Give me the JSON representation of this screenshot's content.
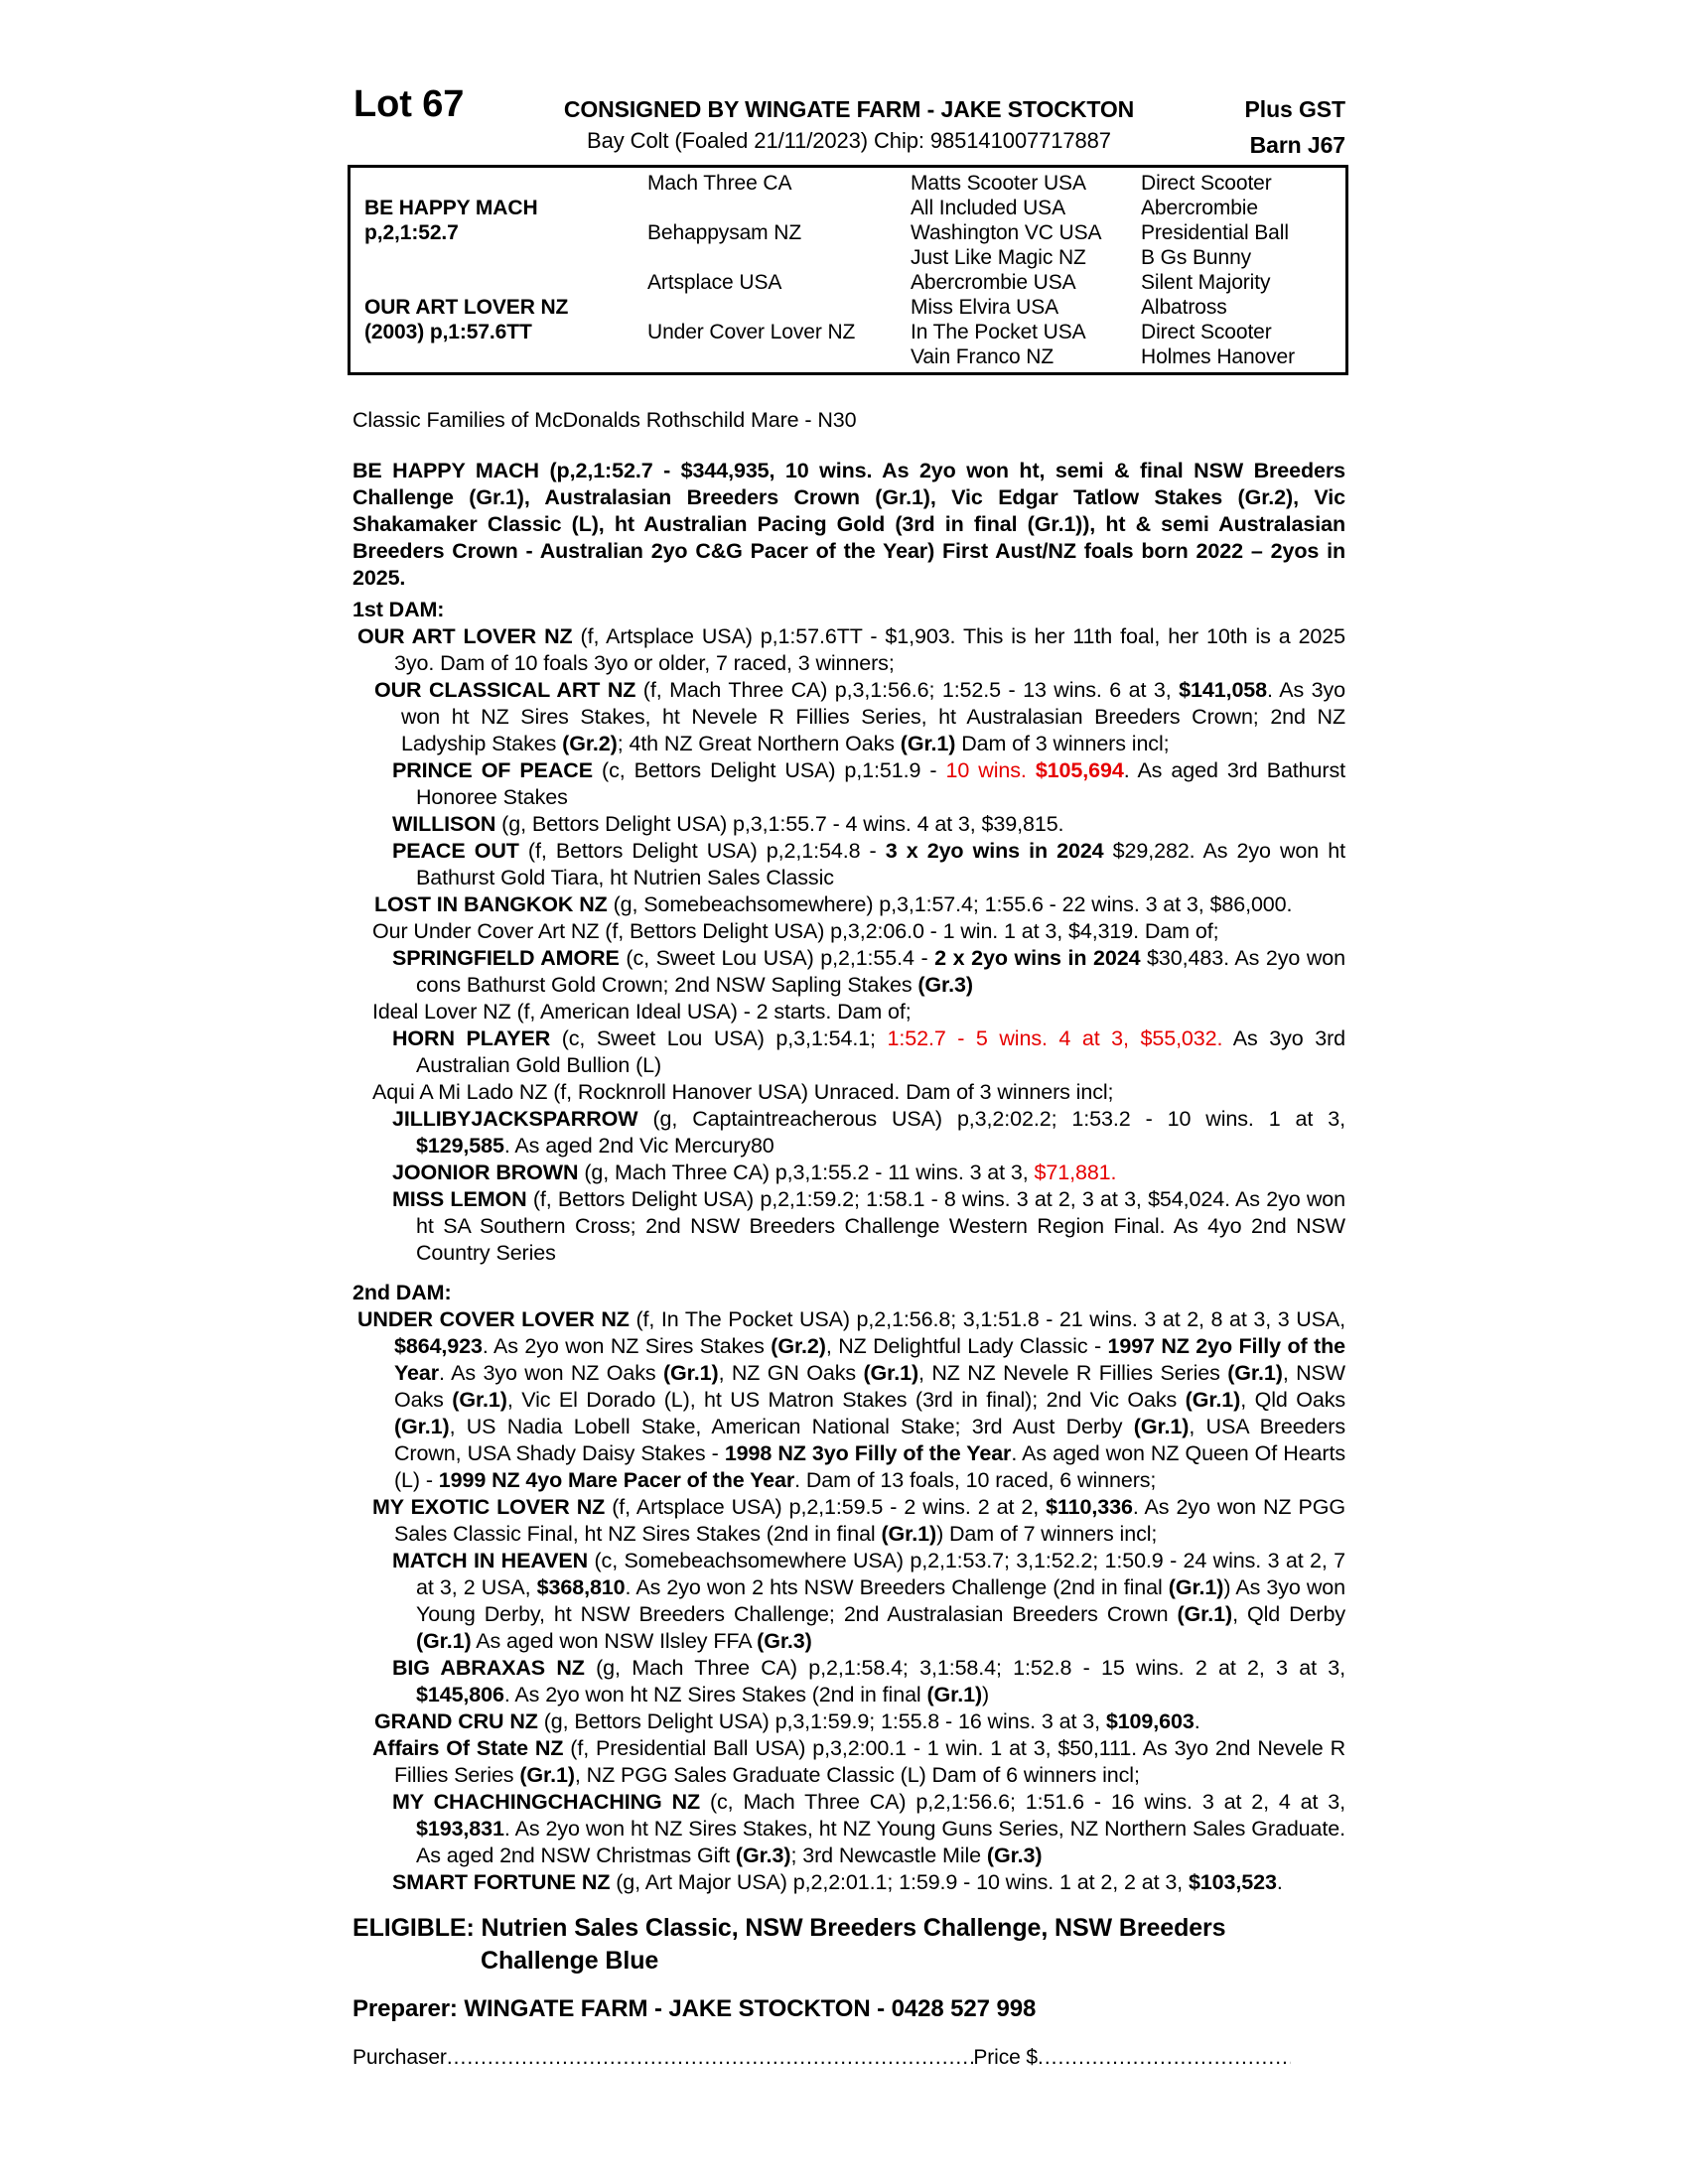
{
  "page": {
    "background": "#ffffff",
    "red": "#e60000"
  },
  "header": {
    "lot": "Lot 67",
    "consigned": "CONSIGNED BY WINGATE FARM - JAKE STOCKTON",
    "plus_gst": "Plus GST",
    "subtitle": "Bay Colt (Foaled 21/11/2023) Chip: 985141007717887",
    "barn": "Barn J67"
  },
  "pedigree_table": {
    "rows": [
      [
        "",
        "Mach Three CA",
        "Matts Scooter USA",
        "Direct Scooter"
      ],
      [
        "BE HAPPY MACH",
        "",
        "All Included USA",
        "Abercrombie"
      ],
      [
        "p,2,1:52.7",
        "Behappysam NZ",
        "Washington VC USA",
        "Presidential Ball"
      ],
      [
        "",
        "",
        "Just Like Magic NZ",
        "B Gs Bunny"
      ],
      [
        "",
        "Artsplace USA",
        "Abercrombie USA",
        "Silent Majority"
      ],
      [
        "OUR ART LOVER NZ",
        "",
        "Miss Elvira USA",
        "Albatross"
      ],
      [
        "(2003) p,1:57.6TT",
        "Under Cover Lover NZ",
        "In The Pocket USA",
        "Direct Scooter"
      ],
      [
        "",
        "",
        "Vain Franco NZ",
        "Holmes Hanover"
      ]
    ]
  },
  "classic_families": "Classic Families of McDonalds Rothschild Mare - N30",
  "sire_paragraph": {
    "segments": [
      {
        "t": "BE HAPPY MACH (p,2,1:52.7 - $344,935, 10 wins. As 2yo won ht, semi & final NSW Breeders Challenge (Gr.1), Australasian Breeders Crown (Gr.1), Vic Edgar Tatlow Stakes (Gr.2), Vic Shakamaker Classic (L), ht Australian Pacing Gold (3rd in final (Gr.1)), ht & semi Australasian Breeders Crown - Australian 2yo C&G Pacer of the Year) First Aust/NZ foals born 2022 – 2yos in 2025.",
        "b": true
      }
    ]
  },
  "sections": [
    {
      "heading": "1st DAM:",
      "paragraphs": [
        {
          "style": "dam",
          "segments": [
            {
              "t": "OUR ART LOVER NZ ",
              "b": true
            },
            {
              "t": "(f, Artsplace USA) p,1:57.6TT - $1,903. This is her 11th foal, her 10th is a 2025 3yo. Dam of 10 foals 3yo or older, 7 raced, 3 winners;"
            }
          ]
        },
        {
          "style": "sub1",
          "segments": [
            {
              "t": "OUR CLASSICAL ART NZ ",
              "b": true
            },
            {
              "t": "(f, Mach Three CA) p,3,1:56.6; 1:52.5 - 13 wins. 6 at 3, "
            },
            {
              "t": "$141,058",
              "b": true
            },
            {
              "t": ". As 3yo won ht NZ Sires Stakes, ht Nevele R Fillies Series, ht Australasian Breeders Crown; 2nd NZ Ladyship Stakes "
            },
            {
              "t": "(Gr.2)",
              "b": true
            },
            {
              "t": "; 4th NZ Great Northern Oaks "
            },
            {
              "t": "(Gr.1)",
              "b": true
            },
            {
              "t": "  Dam of 3 winners incl;"
            }
          ]
        },
        {
          "style": "sub2",
          "segments": [
            {
              "t": "PRINCE OF PEACE ",
              "b": true
            },
            {
              "t": "(c, Bettors Delight USA) p,1:51.9 - "
            },
            {
              "t": "10 wins. ",
              "r": true
            },
            {
              "t": "$105,694",
              "b": true,
              "r": true
            },
            {
              "t": ". As aged 3rd Bathurst Honoree Stakes"
            }
          ]
        },
        {
          "style": "sub2",
          "segments": [
            {
              "t": "WILLISON ",
              "b": true
            },
            {
              "t": "(g, Bettors Delight USA) p,3,1:55.7 - 4 wins. 4 at 3, $39,815."
            }
          ]
        },
        {
          "style": "sub2",
          "segments": [
            {
              "t": "PEACE OUT ",
              "b": true
            },
            {
              "t": "(f, Bettors Delight USA) p,2,1:54.8 - "
            },
            {
              "t": "3 x 2yo wins in 2024",
              "b": true
            },
            {
              "t": "  $29,282. As 2yo won ht Bathurst Gold Tiara, ht Nutrien Sales Classic"
            }
          ]
        },
        {
          "style": "sub1",
          "segments": [
            {
              "t": "LOST IN BANGKOK NZ ",
              "b": true
            },
            {
              "t": "(g, Somebeachsomewhere) p,3,1:57.4; 1:55.6 - 22 wins. 3 at 3, $86,000."
            }
          ]
        },
        {
          "style": "sub1b",
          "segments": [
            {
              "t": "Our Under Cover Art NZ (f, Bettors Delight USA) p,3,2:06.0 - 1 win. 1 at 3, $4,319. Dam of;"
            }
          ]
        },
        {
          "style": "sub2",
          "segments": [
            {
              "t": "SPRINGFIELD AMORE ",
              "b": true
            },
            {
              "t": "(c, Sweet Lou USA) p,2,1:55.4 - "
            },
            {
              "t": "2 x 2yo wins in 2024",
              "b": true
            },
            {
              "t": " $30,483. As 2yo won cons Bathurst Gold Crown; 2nd NSW Sapling Stakes "
            },
            {
              "t": "(Gr.3)",
              "b": true
            }
          ]
        },
        {
          "style": "sub1b",
          "segments": [
            {
              "t": "Ideal Lover NZ (f, American Ideal USA) - 2 starts. Dam of;"
            }
          ]
        },
        {
          "style": "sub2",
          "segments": [
            {
              "t": "HORN PLAYER ",
              "b": true
            },
            {
              "t": "(c, Sweet Lou USA) p,3,1:54.1; "
            },
            {
              "t": "1:52.7 - 5 wins. 4 at 3, $55,032.",
              "r": true
            },
            {
              "t": " As 3yo 3rd Australian Gold Bullion (L)"
            }
          ]
        },
        {
          "style": "sub1b",
          "segments": [
            {
              "t": "Aqui A Mi Lado NZ (f, Rocknroll Hanover USA) Unraced. Dam of 3 winners incl;"
            }
          ]
        },
        {
          "style": "sub2",
          "segments": [
            {
              "t": "JILLIBYJACKSPARROW ",
              "b": true
            },
            {
              "t": "(g, Captaintreacherous USA) p,3,2:02.2; 1:53.2 - 10 wins. 1 at 3, "
            },
            {
              "t": "$129,585",
              "b": true
            },
            {
              "t": ". As aged 2nd Vic Mercury80"
            }
          ]
        },
        {
          "style": "sub2",
          "segments": [
            {
              "t": "JOONIOR BROWN ",
              "b": true
            },
            {
              "t": "(g, Mach Three CA) p,3,1:55.2 - 11 wins. 3 at 3, "
            },
            {
              "t": "$71,881.",
              "r": true
            }
          ]
        },
        {
          "style": "sub2",
          "segments": [
            {
              "t": "MISS LEMON ",
              "b": true
            },
            {
              "t": "(f, Bettors Delight USA) p,2,1:59.2; 1:58.1 - 8 wins. 3 at 2, 3 at 3, $54,024. As 2yo won ht SA Southern Cross; 2nd NSW Breeders Challenge Western Region Final. As 4yo 2nd NSW Country Series"
            }
          ]
        }
      ]
    },
    {
      "heading": "2nd DAM:",
      "paragraphs": [
        {
          "style": "dam",
          "segments": [
            {
              "t": "UNDER COVER LOVER NZ ",
              "b": true
            },
            {
              "t": "(f, In The Pocket USA) p,2,1:56.8; 3,1:51.8 - 21 wins. 3 at 2, 8 at 3, 3 USA, "
            },
            {
              "t": "$864,923",
              "b": true
            },
            {
              "t": ". As 2yo won NZ Sires Stakes "
            },
            {
              "t": "(Gr.2)",
              "b": true
            },
            {
              "t": ", NZ Delightful Lady Classic - "
            },
            {
              "t": "1997 NZ 2yo Filly of the Year",
              "b": true
            },
            {
              "t": ". As 3yo won NZ Oaks "
            },
            {
              "t": "(Gr.1)",
              "b": true
            },
            {
              "t": ", NZ GN Oaks "
            },
            {
              "t": "(Gr.1)",
              "b": true
            },
            {
              "t": ", NZ NZ Nevele R Fillies Series "
            },
            {
              "t": "(Gr.1)",
              "b": true
            },
            {
              "t": ", NSW Oaks "
            },
            {
              "t": "(Gr.1)",
              "b": true
            },
            {
              "t": ", Vic El Dorado (L), ht US Matron Stakes (3rd in final); 2nd Vic Oaks "
            },
            {
              "t": "(Gr.1)",
              "b": true
            },
            {
              "t": ", Qld Oaks "
            },
            {
              "t": "(Gr.1)",
              "b": true
            },
            {
              "t": ", US Nadia Lobell Stake, American National Stake; 3rd Aust Derby "
            },
            {
              "t": "(Gr.1)",
              "b": true
            },
            {
              "t": ", USA Breeders Crown, USA Shady Daisy Stakes - "
            },
            {
              "t": "1998 NZ 3yo Filly of the Year",
              "b": true
            },
            {
              "t": ". As aged won NZ Queen Of Hearts (L) - "
            },
            {
              "t": "1999 NZ 4yo Mare Pacer of the Year",
              "b": true
            },
            {
              "t": ". Dam of 13 foals, 10 raced, 6 winners;"
            }
          ]
        },
        {
          "style": "sub1b",
          "segments": [
            {
              "t": "MY EXOTIC LOVER NZ ",
              "b": true
            },
            {
              "t": "(f, Artsplace USA) p,2,1:59.5 - 2 wins. 2 at 2, "
            },
            {
              "t": "$110,336",
              "b": true
            },
            {
              "t": ". As 2yo won NZ PGG Sales Classic Final, ht NZ Sires Stakes (2nd in final "
            },
            {
              "t": "(Gr.1)",
              "b": true
            },
            {
              "t": ") Dam of 7 winners incl;"
            }
          ]
        },
        {
          "style": "sub2",
          "segments": [
            {
              "t": "MATCH IN HEAVEN ",
              "b": true
            },
            {
              "t": "(c, Somebeachsomewhere USA) p,2,1:53.7; 3,1:52.2; 1:50.9 - 24 wins. 3 at 2, 7 at 3, 2 USA, "
            },
            {
              "t": "$368,810",
              "b": true
            },
            {
              "t": ". As 2yo won 2 hts NSW Breeders Challenge (2nd in final "
            },
            {
              "t": "(Gr.1)",
              "b": true
            },
            {
              "t": ") As 3yo won Young Derby, ht NSW Breeders Challenge; 2nd Australasian Breeders Crown "
            },
            {
              "t": "(Gr.1)",
              "b": true
            },
            {
              "t": ", Qld Derby "
            },
            {
              "t": "(Gr.1)",
              "b": true
            },
            {
              "t": " As aged won NSW Ilsley FFA "
            },
            {
              "t": "(Gr.3)",
              "b": true
            }
          ]
        },
        {
          "style": "sub2",
          "segments": [
            {
              "t": "BIG ABRAXAS NZ ",
              "b": true
            },
            {
              "t": "(g, Mach Three CA) p,2,1:58.4; 3,1:58.4; 1:52.8 - 15 wins. 2 at 2, 3 at 3, "
            },
            {
              "t": "$145,806",
              "b": true
            },
            {
              "t": ". As 2yo won ht NZ Sires Stakes (2nd in final "
            },
            {
              "t": "(Gr.1)",
              "b": true
            },
            {
              "t": ")"
            }
          ]
        },
        {
          "style": "sub1",
          "segments": [
            {
              "t": "GRAND CRU NZ ",
              "b": true
            },
            {
              "t": "(g, Bettors Delight USA) p,3,1:59.9; 1:55.8 - 16 wins. 3 at 3, "
            },
            {
              "t": "$109,603",
              "b": true
            },
            {
              "t": "."
            }
          ]
        },
        {
          "style": "sub1b",
          "segments": [
            {
              "t": "Affairs Of State NZ ",
              "b": true
            },
            {
              "t": "(f, Presidential Ball USA) p,3,2:00.1 - 1 win. 1 at 3, $50,111. As 3yo 2nd Nevele R Fillies Series "
            },
            {
              "t": "(Gr.1)",
              "b": true
            },
            {
              "t": ", NZ PGG Sales Graduate Classic (L) Dam of 6 winners incl;"
            }
          ]
        },
        {
          "style": "sub2",
          "segments": [
            {
              "t": "MY CHACHINGCHACHING NZ ",
              "b": true
            },
            {
              "t": "(c, Mach Three CA) p,2,1:56.6; 1:51.6 - 16 wins. 3 at 2, 4 at 3, "
            },
            {
              "t": "$193,831",
              "b": true
            },
            {
              "t": ". As 2yo won ht NZ Sires Stakes, ht NZ Young Guns Series, NZ Northern Sales Graduate. As aged 2nd NSW Christmas Gift "
            },
            {
              "t": "(Gr.3)",
              "b": true
            },
            {
              "t": "; 3rd Newcastle Mile "
            },
            {
              "t": "(Gr.3)",
              "b": true
            }
          ]
        },
        {
          "style": "sub2",
          "segments": [
            {
              "t": "SMART FORTUNE NZ ",
              "b": true
            },
            {
              "t": "(g, Art Major USA) p,2,2:01.1; 1:59.9 - 10 wins. 1 at 2, 2 at 3, "
            },
            {
              "t": "$103,523",
              "b": true
            },
            {
              "t": "."
            }
          ]
        }
      ]
    }
  ],
  "eligible": {
    "line1": "ELIGIBLE: Nutrien Sales Classic, NSW Breeders Challenge, NSW Breeders",
    "line2": "Challenge Blue"
  },
  "preparer": "Preparer: WINGATE FARM - JAKE STOCKTON - 0428 527 998",
  "purchase_line": {
    "purchaser_label": "Purchaser",
    "leader1": "....................................................................................................................................................",
    "price_label": "Price $",
    "leader2": "............................................................................"
  }
}
